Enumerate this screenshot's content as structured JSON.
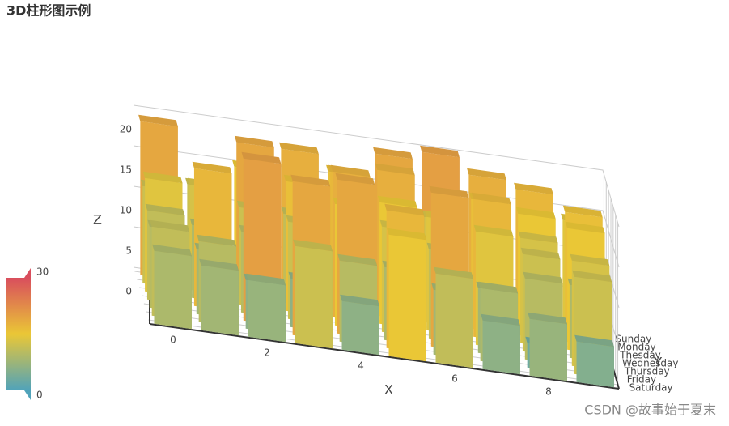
{
  "chart_data": {
    "type": "bar3d",
    "title": "3D柱形图示例",
    "x_label": "X",
    "y_label": "Y",
    "z_label": "Z",
    "x": [
      0,
      1,
      2,
      3,
      4,
      5,
      6,
      7,
      8,
      9
    ],
    "xlim": [
      -0.5,
      9.5
    ],
    "xticks": [
      0,
      2,
      4,
      6,
      8
    ],
    "y_categories": [
      "Sunday",
      "Monday",
      "Thesday",
      "Wednesday",
      "Thursday",
      "Friday",
      "Saturday"
    ],
    "zlim": [
      0,
      20
    ],
    "zticks": [
      0,
      5,
      10,
      15,
      20
    ],
    "values": [
      [
        19,
        12,
        15,
        18,
        16,
        19,
        20,
        18,
        17,
        14
      ],
      [
        12,
        13,
        19,
        11,
        17,
        18,
        13,
        16,
        15,
        16
      ],
      [
        14,
        9,
        12,
        16,
        18,
        15,
        14,
        17,
        13,
        15
      ],
      [
        11,
        17,
        10,
        12,
        15,
        13,
        11,
        14,
        12,
        9
      ],
      [
        10,
        8,
        20,
        6,
        19,
        9,
        19,
        8,
        10,
        13
      ],
      [
        11,
        10,
        6,
        19,
        10,
        17,
        8,
        9,
        3,
        12
      ],
      [
        9,
        8,
        7,
        12,
        6,
        15,
        11,
        6,
        7,
        5
      ]
    ],
    "visualmap": {
      "min": 0,
      "max": 30,
      "colors": [
        "#50a3ba",
        "#eac736",
        "#d94e5d"
      ]
    },
    "grid": true,
    "watermark": "CSDN @故事始于夏末"
  }
}
